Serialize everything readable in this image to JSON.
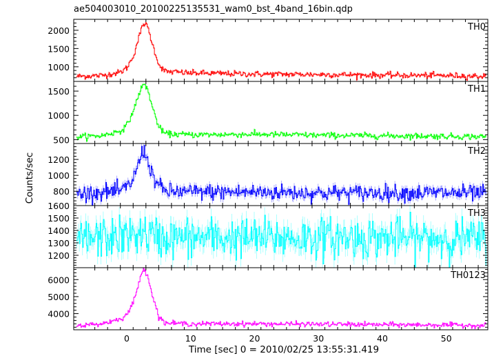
{
  "chart_data": {
    "type": "line",
    "title": "ae504003010_20100225135531_wam0_bst_4band_16bin.qdp",
    "xlabel": "Time [sec] 0 = 2010/02/25 13:55:31.419",
    "ylabel": "Counts/sec",
    "xlim": [
      -8.3,
      56.5
    ],
    "xticks": [
      0,
      10,
      20,
      30,
      40,
      50
    ],
    "grid": false,
    "error_bars": true,
    "panels": [
      {
        "name": "TH0",
        "color": "#ff0000",
        "ylim": [
          600,
          2300
        ],
        "yticks": [
          1000,
          1500,
          2000
        ],
        "base": 800,
        "peak_x": 2.6,
        "peak_y": 2200,
        "rise": 1.4,
        "decay": 1.3,
        "noise": 40,
        "lo": 650,
        "profile": [
          [
            -7.5,
            740
          ],
          [
            -4,
            760
          ],
          [
            -1,
            850
          ],
          [
            0,
            980
          ],
          [
            1,
            1300
          ],
          [
            2,
            1900
          ],
          [
            2.6,
            2200
          ],
          [
            3.2,
            2100
          ],
          [
            4,
            1600
          ],
          [
            5,
            1050
          ],
          [
            6,
            870
          ],
          [
            10,
            830
          ],
          [
            20,
            800
          ],
          [
            30,
            790
          ],
          [
            40,
            770
          ],
          [
            50,
            760
          ],
          [
            56,
            740
          ]
        ]
      },
      {
        "name": "TH1",
        "color": "#00ff00",
        "ylim": [
          420,
          1700
        ],
        "yticks": [
          500,
          1000,
          1500
        ],
        "base": 580,
        "peak_x": 2.6,
        "peak_y": 1640,
        "rise": 1.5,
        "decay": 1.3,
        "noise": 30,
        "lo": 480,
        "profile": [
          [
            -7.5,
            560
          ],
          [
            -4,
            580
          ],
          [
            -1,
            680
          ],
          [
            0,
            800
          ],
          [
            1,
            1100
          ],
          [
            2,
            1500
          ],
          [
            2.6,
            1640
          ],
          [
            3.2,
            1550
          ],
          [
            4,
            1150
          ],
          [
            5,
            750
          ],
          [
            6,
            620
          ],
          [
            10,
            600
          ],
          [
            20,
            610
          ],
          [
            30,
            590
          ],
          [
            40,
            580
          ],
          [
            50,
            570
          ],
          [
            56,
            560
          ]
        ]
      },
      {
        "name": "TH2",
        "color": "#0000ff",
        "ylim": [
          620,
          1400
        ],
        "yticks": [
          800,
          1000,
          1200
        ],
        "base": 780,
        "peak_x": 2.5,
        "peak_y": 1320,
        "rise": 1.0,
        "decay": 1.0,
        "noise": 50,
        "lo": 680,
        "profile": [
          [
            -7.5,
            770
          ],
          [
            -4,
            790
          ],
          [
            -1,
            800
          ],
          [
            0,
            850
          ],
          [
            1,
            960
          ],
          [
            2,
            1200
          ],
          [
            2.5,
            1320
          ],
          [
            3,
            1250
          ],
          [
            4,
            1000
          ],
          [
            5,
            860
          ],
          [
            6,
            800
          ],
          [
            10,
            790
          ],
          [
            20,
            790
          ],
          [
            30,
            780
          ],
          [
            40,
            780
          ],
          [
            50,
            780
          ],
          [
            56,
            770
          ]
        ]
      },
      {
        "name": "TH3",
        "color": "#00ffff",
        "ylim": [
          1100,
          1600
        ],
        "yticks": [
          1200,
          1300,
          1400,
          1500,
          1600
        ],
        "base": 1340,
        "peak_x": 2.0,
        "peak_y": 1380,
        "rise": 2.0,
        "decay": 2.0,
        "noise": 80,
        "lo": 1120,
        "profile": [
          [
            -7.5,
            1330
          ],
          [
            0,
            1350
          ],
          [
            2,
            1380
          ],
          [
            5,
            1340
          ],
          [
            20,
            1340
          ],
          [
            40,
            1340
          ],
          [
            56,
            1330
          ]
        ]
      },
      {
        "name": "TH0123",
        "color": "#ff00ff",
        "ylim": [
          3050,
          6700
        ],
        "yticks": [
          4000,
          5000,
          6000
        ],
        "base": 3350,
        "peak_x": 2.6,
        "peak_y": 6650,
        "rise": 1.4,
        "decay": 1.3,
        "noise": 70,
        "lo": 3150,
        "profile": [
          [
            -7.5,
            3300
          ],
          [
            -4,
            3400
          ],
          [
            -1,
            3700
          ],
          [
            0,
            3950
          ],
          [
            1,
            4700
          ],
          [
            2,
            6000
          ],
          [
            2.6,
            6650
          ],
          [
            3.2,
            6300
          ],
          [
            4,
            5000
          ],
          [
            5,
            3800
          ],
          [
            6,
            3450
          ],
          [
            10,
            3400
          ],
          [
            20,
            3400
          ],
          [
            30,
            3380
          ],
          [
            40,
            3350
          ],
          [
            50,
            3330
          ],
          [
            56,
            3300
          ]
        ]
      }
    ]
  }
}
